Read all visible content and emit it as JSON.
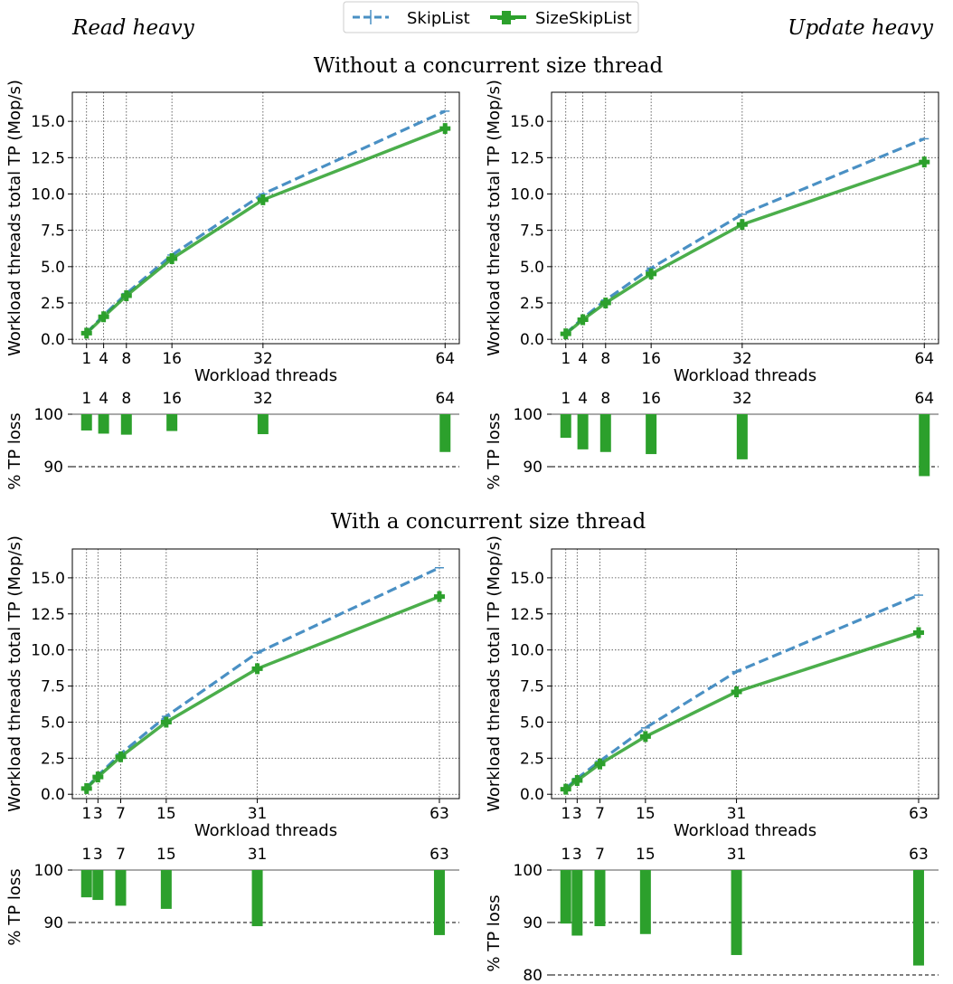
{
  "header": {
    "left_label": "Read heavy",
    "right_label": "Update heavy"
  },
  "legend": {
    "items": [
      {
        "label": "SkipList",
        "color": "#4a90c4",
        "style": "dashed"
      },
      {
        "label": "SizeSkipList",
        "color": "#2ca02c",
        "style": "solid-plus"
      }
    ]
  },
  "sections": [
    {
      "title": "Without a concurrent size thread"
    },
    {
      "title": "With a concurrent size thread"
    }
  ],
  "colors": {
    "skiplist": "#4a90c4",
    "sizeskiplist": "#2ca02c",
    "bar": "#2ca02c"
  },
  "chart_data": [
    {
      "type": "line",
      "id": "top-left",
      "xlabel": "Workload threads",
      "ylabel": "Workload threads total TP (Mop/s)",
      "x": [
        1,
        4,
        8,
        16,
        32,
        64
      ],
      "xticks": [
        "1",
        "4",
        "8",
        "16",
        "32",
        "64"
      ],
      "yticks": [
        "0.0",
        "2.5",
        "5.0",
        "7.5",
        "10.0",
        "12.5",
        "15.0"
      ],
      "ylim": [
        -0.3,
        17.0
      ],
      "series": [
        {
          "name": "SkipList",
          "values": [
            0.45,
            1.65,
            3.15,
            5.8,
            10.0,
            15.7
          ]
        },
        {
          "name": "SizeSkipList",
          "values": [
            0.42,
            1.55,
            3.0,
            5.55,
            9.6,
            14.5
          ]
        }
      ]
    },
    {
      "type": "bar",
      "id": "top-left-loss",
      "ylabel": "% TP loss",
      "categories": [
        "1",
        "4",
        "8",
        "16",
        "32",
        "64"
      ],
      "values": [
        96.9,
        96.3,
        96.1,
        96.8,
        96.2,
        92.8
      ],
      "ylim": [
        88.5,
        100
      ],
      "yticks": [
        "100",
        "90"
      ]
    },
    {
      "type": "line",
      "id": "top-right",
      "xlabel": "Workload threads",
      "ylabel": "Workload threads total TP (Mop/s)",
      "x": [
        1,
        4,
        8,
        16,
        32,
        64
      ],
      "xticks": [
        "1",
        "4",
        "8",
        "16",
        "32",
        "64"
      ],
      "yticks": [
        "0.0",
        "2.5",
        "5.0",
        "7.5",
        "10.0",
        "12.5",
        "15.0"
      ],
      "ylim": [
        -0.3,
        17.0
      ],
      "series": [
        {
          "name": "SkipList",
          "values": [
            0.4,
            1.45,
            2.7,
            4.9,
            8.6,
            13.8
          ]
        },
        {
          "name": "SizeSkipList",
          "values": [
            0.38,
            1.35,
            2.5,
            4.5,
            7.9,
            12.2
          ]
        }
      ]
    },
    {
      "type": "bar",
      "id": "top-right-loss",
      "ylabel": "% TP loss",
      "categories": [
        "1",
        "4",
        "8",
        "16",
        "32",
        "64"
      ],
      "values": [
        95.5,
        93.3,
        92.8,
        92.4,
        91.4,
        88.2
      ],
      "ylim": [
        88,
        100
      ],
      "yticks": [
        "100",
        "90"
      ]
    },
    {
      "type": "line",
      "id": "bottom-left",
      "xlabel": "Workload threads",
      "ylabel": "Workload threads total TP (Mop/s)",
      "x": [
        1,
        3,
        7,
        15,
        31,
        63
      ],
      "xticks": [
        "1",
        "3",
        "7",
        "15",
        "31",
        "63"
      ],
      "yticks": [
        "0.0",
        "2.5",
        "5.0",
        "7.5",
        "10.0",
        "12.5",
        "15.0"
      ],
      "ylim": [
        -0.3,
        17.0
      ],
      "series": [
        {
          "name": "SkipList",
          "values": [
            0.45,
            1.3,
            2.8,
            5.4,
            9.8,
            15.7
          ]
        },
        {
          "name": "SizeSkipList",
          "values": [
            0.4,
            1.2,
            2.6,
            5.0,
            8.7,
            13.7
          ]
        }
      ]
    },
    {
      "type": "bar",
      "id": "bottom-left-loss",
      "ylabel": "% TP loss",
      "categories": [
        "1",
        "3",
        "7",
        "15",
        "31",
        "63"
      ],
      "values": [
        94.8,
        94.3,
        93.2,
        92.6,
        89.3,
        87.6
      ],
      "ylim": [
        86.5,
        100
      ],
      "yticks": [
        "100",
        "90"
      ]
    },
    {
      "type": "line",
      "id": "bottom-right",
      "xlabel": "Workload threads",
      "ylabel": "Workload threads total TP (Mop/s)",
      "x": [
        1,
        3,
        7,
        15,
        31,
        63
      ],
      "xticks": [
        "1",
        "3",
        "7",
        "15",
        "31",
        "63"
      ],
      "yticks": [
        "0.0",
        "2.5",
        "5.0",
        "7.5",
        "10.0",
        "12.5",
        "15.0"
      ],
      "ylim": [
        -0.3,
        17.0
      ],
      "series": [
        {
          "name": "SkipList",
          "values": [
            0.4,
            1.1,
            2.3,
            4.6,
            8.5,
            13.8
          ]
        },
        {
          "name": "SizeSkipList",
          "values": [
            0.35,
            0.95,
            2.1,
            4.0,
            7.1,
            11.2
          ]
        }
      ]
    },
    {
      "type": "bar",
      "id": "bottom-right-loss",
      "ylabel": "% TP loss",
      "categories": [
        "1",
        "3",
        "7",
        "15",
        "31",
        "63"
      ],
      "values": [
        89.8,
        87.5,
        89.3,
        87.8,
        83.8,
        81.8
      ],
      "ylim": [
        80,
        100
      ],
      "yticks": [
        "100",
        "90",
        "80"
      ]
    }
  ]
}
